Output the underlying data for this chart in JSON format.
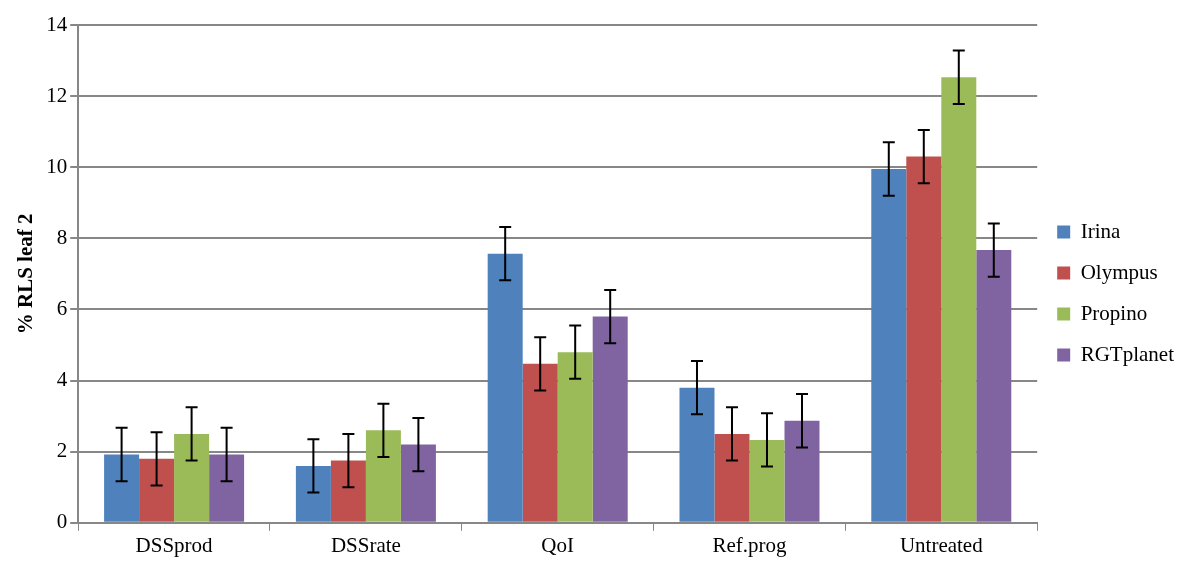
{
  "chart_data": {
    "type": "bar",
    "ylabel": "% RLS leaf 2",
    "categories": [
      "DSSprod",
      "DSSrate",
      "QoI",
      "Ref.prog",
      "Untreated"
    ],
    "series": [
      {
        "name": "Irina",
        "color": "#4f81bd",
        "values": [
          1.92,
          1.6,
          7.57,
          3.8,
          9.95
        ],
        "errors": [
          0.75,
          0.75,
          0.75,
          0.75,
          0.75
        ]
      },
      {
        "name": "Olympus",
        "color": "#c0504d",
        "values": [
          1.8,
          1.75,
          4.47,
          2.5,
          10.3
        ],
        "errors": [
          0.75,
          0.75,
          0.75,
          0.75,
          0.75
        ]
      },
      {
        "name": "Propino",
        "color": "#9bbb59",
        "values": [
          2.5,
          2.6,
          4.8,
          2.33,
          12.53
        ],
        "errors": [
          0.75,
          0.75,
          0.75,
          0.75,
          0.75
        ]
      },
      {
        "name": "RGTplanet",
        "color": "#8064a2",
        "values": [
          1.92,
          2.2,
          5.8,
          2.87,
          7.67
        ],
        "errors": [
          0.75,
          0.75,
          0.75,
          0.75,
          0.75
        ]
      }
    ],
    "ylim": [
      0,
      14
    ],
    "yticks": [
      0,
      2,
      4,
      6,
      8,
      10,
      12,
      14
    ],
    "grid": "y",
    "legend": "right"
  }
}
